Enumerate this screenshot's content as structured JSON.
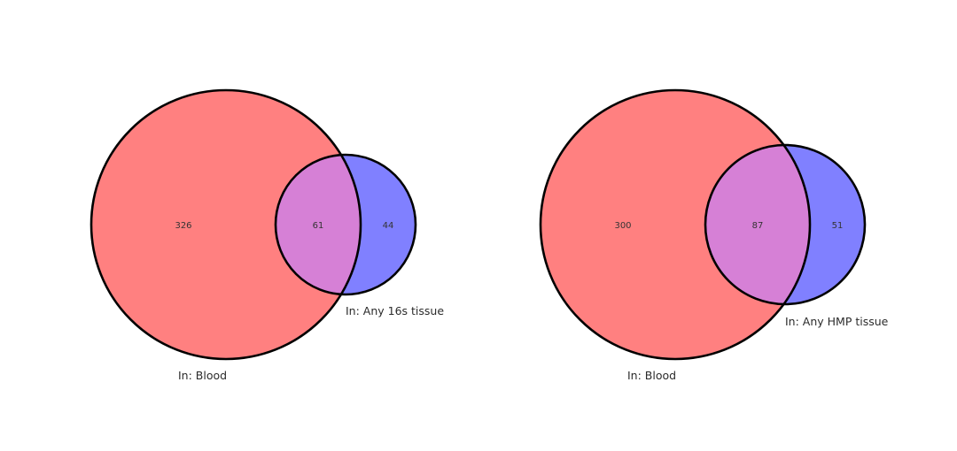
{
  "colors": {
    "set_a": "#ff8080",
    "set_b": "#8080ff",
    "overlap": "#d680d6",
    "outline": "#000000",
    "background": "#ffffff"
  },
  "venn_left": {
    "set_a_label": "In: Blood",
    "set_b_label": "In: Any 16s tissue",
    "only_a": "326",
    "both": "61",
    "only_b": "44"
  },
  "venn_right": {
    "set_a_label": "In: Blood",
    "set_b_label": "In: Any HMP tissue",
    "only_a": "300",
    "both": "87",
    "only_b": "51"
  }
}
